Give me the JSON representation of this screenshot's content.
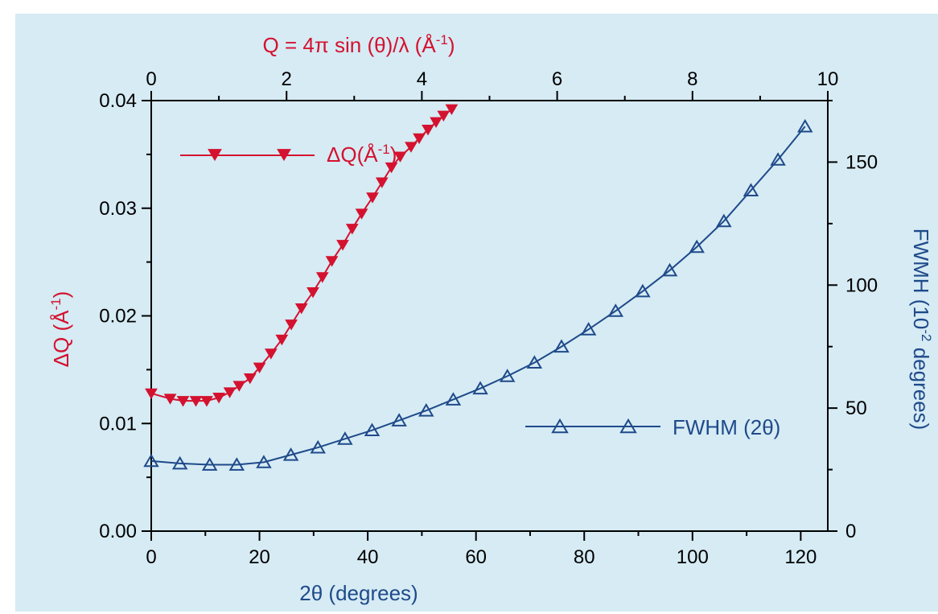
{
  "colors": {
    "background": "#d6ebf4",
    "red_series": "#d4122f",
    "blue_series": "#1f4a8a",
    "axis": "#000000"
  },
  "chart_data": {
    "type": "line",
    "x_bottom": {
      "label": "2θ (degrees)",
      "range": [
        0,
        125
      ],
      "ticks": [
        0,
        20,
        40,
        60,
        80,
        100,
        120
      ],
      "tick_labels": [
        "0",
        "20",
        "40",
        "60",
        "80",
        "100",
        "120"
      ]
    },
    "x_top": {
      "label_main": "Q = 4π sin (θ)/λ (Å",
      "label_sup": "-1",
      "label_end": ")",
      "range": [
        0,
        10
      ],
      "ticks": [
        0,
        2,
        4,
        6,
        8,
        10
      ],
      "tick_labels": [
        "0",
        "2",
        "4",
        "6",
        "8",
        "10"
      ]
    },
    "y_left": {
      "label_main": "ΔQ (Å",
      "label_sup": "-1",
      "label_end": ")",
      "range": [
        0,
        0.04
      ],
      "ticks": [
        0,
        0.01,
        0.02,
        0.03,
        0.04
      ],
      "tick_labels": [
        "0.00",
        "0.01",
        "0.02",
        "0.03",
        "0.04"
      ]
    },
    "y_right": {
      "label_main": "FWMH (10",
      "label_sup": "-2",
      "label_end": " degrees)",
      "range": [
        0,
        175
      ],
      "ticks": [
        0,
        50,
        100,
        150
      ],
      "tick_labels": [
        "0",
        "50",
        "100",
        "150"
      ]
    },
    "grid": false,
    "series": [
      {
        "name_main": "ΔQ(Å",
        "name_sup": "-1",
        "name_end": ")",
        "axis_x": "top",
        "axis_y": "left",
        "marker": "filled-down-triangle",
        "x": [
          0,
          0.28,
          0.47,
          0.66,
          0.82,
          1.0,
          1.16,
          1.3,
          1.46,
          1.6,
          1.77,
          1.93,
          2.07,
          2.22,
          2.39,
          2.53,
          2.67,
          2.83,
          2.97,
          3.11,
          3.27,
          3.41,
          3.55,
          3.68,
          3.84,
          3.96,
          4.09,
          4.21,
          4.32,
          4.44
        ],
        "y": [
          0.0128,
          0.0123,
          0.0121,
          0.0121,
          0.0121,
          0.0124,
          0.0129,
          0.0135,
          0.0142,
          0.0152,
          0.0165,
          0.0178,
          0.0192,
          0.0207,
          0.0222,
          0.0236,
          0.0251,
          0.0266,
          0.0281,
          0.0295,
          0.031,
          0.0324,
          0.0338,
          0.0348,
          0.0357,
          0.0365,
          0.0373,
          0.038,
          0.0386,
          0.0392
        ]
      },
      {
        "name": "FWHM (2θ)",
        "axis_x": "bottom",
        "axis_y": "right",
        "marker": "open-up-triangle",
        "x": [
          0,
          5.3,
          10.8,
          15.8,
          20.8,
          25.8,
          30.8,
          35.8,
          40.8,
          45.8,
          50.8,
          55.8,
          60.8,
          65.8,
          70.8,
          75.8,
          80.8,
          85.8,
          90.8,
          95.8,
          100.8,
          105.8,
          110.8,
          115.8,
          120.8
        ],
        "y": [
          28.5,
          27.5,
          27,
          27,
          28,
          31,
          34,
          37.5,
          41,
          45,
          49,
          53.5,
          58,
          63,
          68.5,
          75,
          82,
          89.5,
          97.5,
          106,
          115.5,
          126,
          138.5,
          151,
          164.5
        ]
      }
    ],
    "legend_placement": "inside, upper-left (ΔQ) and lower-right (FWHM)"
  }
}
